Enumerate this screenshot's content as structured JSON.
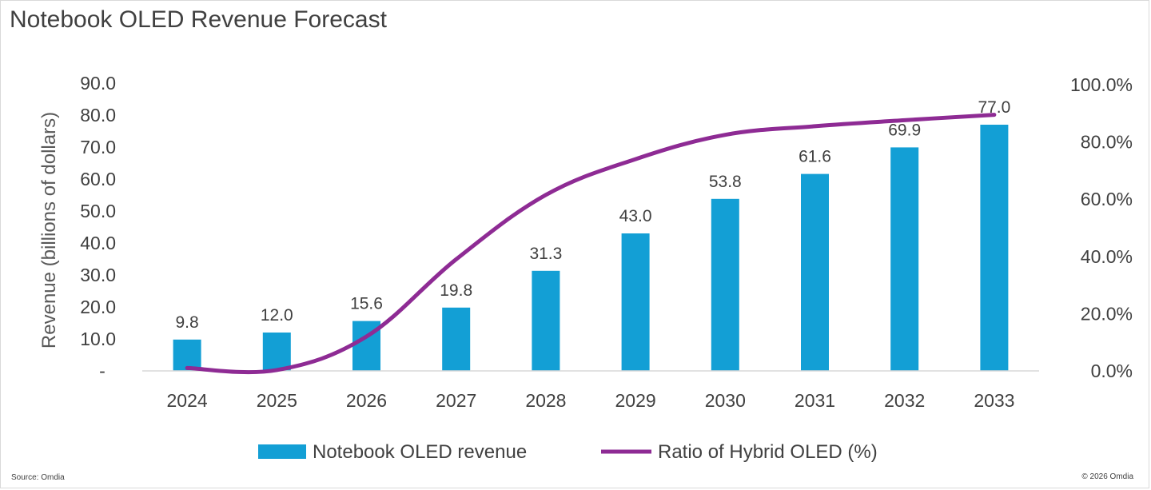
{
  "title": "Notebook OLED Revenue Forecast",
  "footer": {
    "source": "Source: Omdia",
    "copyright": "© 2026 Omdia"
  },
  "colors": {
    "bar": "#139fd5",
    "line": "#8e2b94",
    "text": "#404040",
    "axis": "#d9d9d9"
  },
  "chart_data": {
    "type": "bar",
    "categories": [
      "2024",
      "2025",
      "2026",
      "2027",
      "2028",
      "2029",
      "2030",
      "2031",
      "2032",
      "2033"
    ],
    "series": [
      {
        "name": "Notebook OLED revenue",
        "type": "bar",
        "axis": "left",
        "values": [
          9.8,
          12.0,
          15.6,
          19.8,
          31.3,
          43.0,
          53.8,
          61.6,
          69.9,
          77.0
        ],
        "labels": [
          "9.8",
          "12.0",
          "15.6",
          "19.8",
          "31.3",
          "43.0",
          "53.8",
          "61.6",
          "69.9",
          "77.0"
        ]
      },
      {
        "name": "Ratio of Hybrid OLED (%)",
        "type": "line",
        "axis": "right",
        "values": [
          1.0,
          0.3,
          12.0,
          39.0,
          61.5,
          74.0,
          82.5,
          85.5,
          87.6,
          89.5
        ]
      }
    ],
    "ylabel": "Revenue (billions of dollars)",
    "ylim": [
      0,
      90
    ],
    "y_ticks": [
      "-",
      "10.0",
      "20.0",
      "30.0",
      "40.0",
      "50.0",
      "60.0",
      "70.0",
      "80.0",
      "90.0"
    ],
    "y2lim": [
      0,
      100
    ],
    "y2_ticks": [
      "0.0%",
      "20.0%",
      "40.0%",
      "60.0%",
      "80.0%",
      "100.0%"
    ],
    "grid": false,
    "legend": "bottom"
  }
}
